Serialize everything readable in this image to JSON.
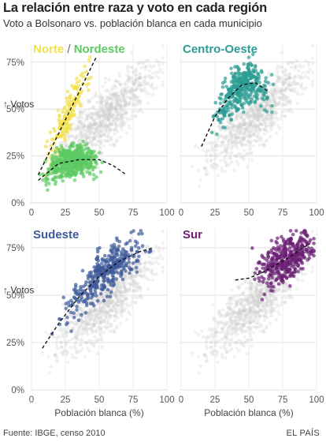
{
  "header": {
    "title": "La relación entre raza y voto en cada región",
    "subtitle": "Voto a Bolsonaro vs. población blanca en cada municipio"
  },
  "footer": {
    "source": "Fuente: IBGE, censo 2010",
    "credit": "EL PAÍS"
  },
  "colors": {
    "background_points": "#cccccc",
    "norte": "#f2e04b",
    "nordeste": "#5ccb63",
    "centro_oeste": "#2c9c94",
    "sudeste": "#3d5a9a",
    "sur": "#6b1f73"
  },
  "chart_data": [
    {
      "type": "scatter",
      "panel": "Norte / Nordeste",
      "x_ticks": [
        "0",
        "25",
        "50",
        "75",
        "100"
      ],
      "y_ticks": [
        "0%",
        "25%",
        "50%",
        "75%"
      ],
      "y_annotation": "↑ Votos",
      "xlabel": "",
      "xlim": [
        0,
        100
      ],
      "ylim": [
        0,
        85
      ],
      "series": [
        {
          "name": "Norte",
          "color": "#f2e04b",
          "x_range": [
            8,
            50
          ],
          "center_x": 27,
          "trend": [
            [
              5,
              15
            ],
            [
              48,
              78
            ]
          ]
        },
        {
          "name": "Nordeste",
          "color": "#5ccb63",
          "x_range": [
            6,
            60
          ],
          "center_x": 30,
          "trend": [
            [
              5,
              12
            ],
            [
              20,
              21
            ],
            [
              35,
              23
            ],
            [
              50,
              23
            ],
            [
              60,
              20
            ],
            [
              70,
              15
            ]
          ]
        }
      ]
    },
    {
      "type": "scatter",
      "panel": "Centro-Oeste",
      "x_ticks": [
        "0",
        "25",
        "50",
        "75",
        "100"
      ],
      "y_ticks": [
        "0%",
        "25%",
        "50%",
        "75%"
      ],
      "xlabel": "",
      "xlim": [
        0,
        100
      ],
      "ylim": [
        0,
        85
      ],
      "series": [
        {
          "name": "Centro-Oeste",
          "color": "#2c9c94",
          "x_range": [
            18,
            72
          ],
          "center_x": 45,
          "trend": [
            [
              15,
              30
            ],
            [
              25,
              46
            ],
            [
              35,
              56
            ],
            [
              45,
              63
            ],
            [
              55,
              64
            ],
            [
              65,
              59
            ]
          ]
        }
      ]
    },
    {
      "type": "scatter",
      "panel": "Sudeste",
      "x_ticks": [
        "0",
        "25",
        "50",
        "75",
        "100"
      ],
      "y_ticks": [
        "0%",
        "25%",
        "50%",
        "75%"
      ],
      "y_annotation": "↑ Votos",
      "xlabel": "Población blanca (%)",
      "xlim": [
        0,
        100
      ],
      "ylim": [
        0,
        85
      ],
      "series": [
        {
          "name": "Sudeste",
          "color": "#3d5a9a",
          "x_range": [
            8,
            88
          ],
          "center_x": 55,
          "trend": [
            [
              8,
              22
            ],
            [
              20,
              35
            ],
            [
              35,
              49
            ],
            [
              50,
              60
            ],
            [
              65,
              68
            ],
            [
              80,
              73
            ],
            [
              90,
              75
            ]
          ]
        }
      ]
    },
    {
      "type": "scatter",
      "panel": "Sur",
      "x_ticks": [
        "0",
        "25",
        "50",
        "75",
        "100"
      ],
      "y_ticks": [
        "0%",
        "25%",
        "50%",
        "75%"
      ],
      "xlabel": "Población blanca (%)",
      "xlim": [
        0,
        100
      ],
      "ylim": [
        0,
        85
      ],
      "series": [
        {
          "name": "Sur",
          "color": "#6b1f73",
          "x_range": [
            40,
            98
          ],
          "center_x": 78,
          "trend": [
            [
              40,
              58
            ],
            [
              50,
              59
            ],
            [
              60,
              62
            ],
            [
              70,
              66
            ],
            [
              80,
              70
            ],
            [
              90,
              75
            ],
            [
              95,
              77
            ]
          ]
        }
      ]
    }
  ]
}
